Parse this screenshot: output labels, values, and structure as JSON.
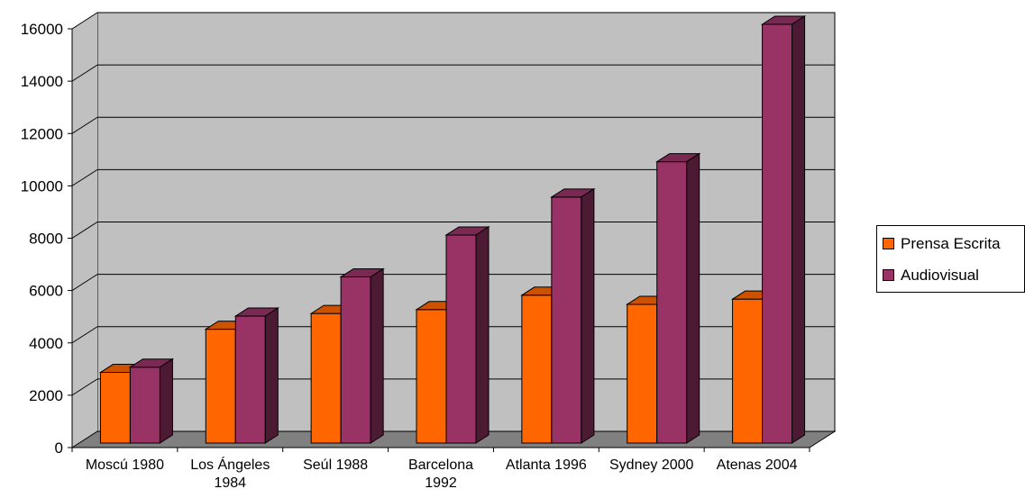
{
  "chart_data": {
    "type": "bar",
    "categories": [
      [
        "Moscú 1980"
      ],
      [
        "Los Ángeles",
        "1984"
      ],
      [
        "Seúl 1988"
      ],
      [
        "Barcelona",
        "1992"
      ],
      [
        "Atlanta 1996"
      ],
      [
        "Sydney 2000"
      ],
      [
        "Atenas 2004"
      ]
    ],
    "series": [
      {
        "name": "Prensa Escrita",
        "values": [
          2700,
          4350,
          4950,
          5100,
          5650,
          5300,
          5500
        ],
        "color": "#ff6600"
      },
      {
        "name": "Audiovisual",
        "values": [
          2900,
          4850,
          6350,
          7950,
          9400,
          10750,
          16000
        ],
        "color": "#993366"
      }
    ],
    "yticks": [
      "0",
      "2000",
      "4000",
      "6000",
      "8000",
      "10000",
      "12000",
      "14000",
      "16000"
    ],
    "ylim": [
      0,
      16000
    ],
    "grid": true,
    "legend": "right",
    "wall_color": "#c0c0c0",
    "floor_color": "#808080"
  }
}
